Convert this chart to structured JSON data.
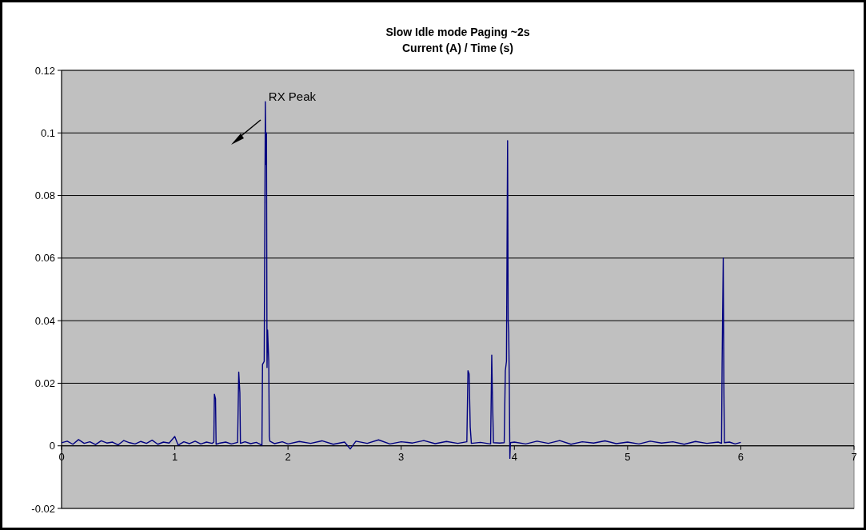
{
  "chart_data": {
    "type": "line",
    "title": "Slow Idle mode  Paging ~2s",
    "subtitle": "Current (A) / Time (s)",
    "annotations": [
      "RX Peak"
    ],
    "x": [
      0,
      0.05,
      0.1,
      0.15,
      0.2,
      0.25,
      0.3,
      0.35,
      0.4,
      0.45,
      0.5,
      0.55,
      0.6,
      0.65,
      0.7,
      0.75,
      0.8,
      0.85,
      0.9,
      0.95,
      1.0,
      1.03,
      1.08,
      1.13,
      1.18,
      1.23,
      1.28,
      1.33,
      1.345,
      1.35,
      1.36,
      1.365,
      1.4,
      1.45,
      1.5,
      1.555,
      1.565,
      1.575,
      1.58,
      1.62,
      1.67,
      1.72,
      1.77,
      1.775,
      1.79,
      1.8,
      1.805,
      1.81,
      1.815,
      1.82,
      1.83,
      1.835,
      1.84,
      1.88,
      1.95,
      2.0,
      2.1,
      2.2,
      2.3,
      2.4,
      2.5,
      2.55,
      2.6,
      2.7,
      2.8,
      2.9,
      3.0,
      3.1,
      3.2,
      3.3,
      3.4,
      3.5,
      3.58,
      3.59,
      3.6,
      3.61,
      3.62,
      3.7,
      3.79,
      3.8,
      3.805,
      3.815,
      3.87,
      3.91,
      3.92,
      3.93,
      3.94,
      3.945,
      3.95,
      3.955,
      3.96,
      3.965,
      4.0,
      4.1,
      4.2,
      4.3,
      4.4,
      4.5,
      4.6,
      4.7,
      4.8,
      4.9,
      5.0,
      5.1,
      5.2,
      5.3,
      5.4,
      5.5,
      5.6,
      5.7,
      5.8,
      5.83,
      5.835,
      5.845,
      5.85,
      5.855,
      5.9,
      5.95,
      6.0
    ],
    "series": [
      {
        "color": "#000080",
        "values": [
          0.001,
          0.0015,
          0.0005,
          0.002,
          0.0008,
          0.0013,
          0.0004,
          0.0016,
          0.0009,
          0.0012,
          0.0003,
          0.0017,
          0.001,
          0.0006,
          0.0014,
          0.0008,
          0.0018,
          0.0005,
          0.0012,
          0.0009,
          0.003,
          0.0002,
          0.0013,
          0.0007,
          0.0015,
          0.0006,
          0.0012,
          0.0008,
          0.0012,
          0.0165,
          0.015,
          0.0005,
          0.0009,
          0.0012,
          0.0006,
          0.0011,
          0.0236,
          0.017,
          0.0008,
          0.0013,
          0.0007,
          0.0011,
          0.0002,
          0.026,
          0.027,
          0.11,
          0.09,
          0.1,
          0.025,
          0.037,
          0.027,
          0.003,
          0.0015,
          0.0007,
          0.0013,
          0.0006,
          0.0014,
          0.0008,
          0.0016,
          0.0005,
          0.0012,
          -0.001,
          0.0015,
          0.0008,
          0.0019,
          0.0006,
          0.0013,
          0.0009,
          0.0017,
          0.0007,
          0.0014,
          0.0008,
          0.0013,
          0.024,
          0.023,
          0.006,
          0.0008,
          0.0011,
          0.0006,
          0.029,
          0.018,
          0.001,
          0.0009,
          0.001,
          0.024,
          0.027,
          0.0975,
          0.04,
          0.036,
          0.02,
          -0.004,
          0.001,
          0.0012,
          0.0006,
          0.0015,
          0.0008,
          0.0017,
          0.0005,
          0.0013,
          0.0009,
          0.0016,
          0.0007,
          0.0012,
          0.0006,
          0.0015,
          0.0009,
          0.0013,
          0.0005,
          0.0014,
          0.0008,
          0.0012,
          0.0008,
          0.026,
          0.06,
          0.02,
          0.001,
          0.0012,
          0.0006,
          0.0011
        ]
      }
    ],
    "xlim": [
      0,
      7
    ],
    "xticks": [
      0,
      1,
      2,
      3,
      4,
      5,
      6,
      7
    ],
    "ylim": [
      -0.02,
      0.12
    ],
    "yticks": [
      -0.02,
      0,
      0.02,
      0.04,
      0.06,
      0.08,
      0.1,
      0.12
    ],
    "grid": "y",
    "marker": "none",
    "line_style": "solid"
  }
}
